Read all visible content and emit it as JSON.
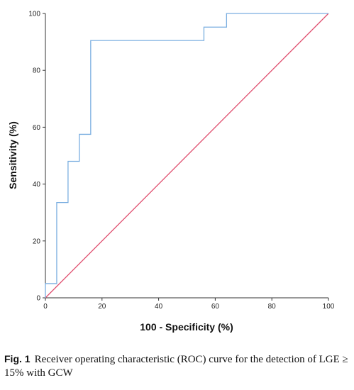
{
  "chart_data": {
    "type": "line",
    "xlabel": "100 - Specificity (%)",
    "ylabel": "Sensitivity (%)",
    "xlim": [
      0,
      100
    ],
    "ylim": [
      0,
      100
    ],
    "xticks": [
      "0",
      "20",
      "40",
      "60",
      "80",
      "100"
    ],
    "yticks": [
      "0",
      "20",
      "40",
      "60",
      "80",
      "100"
    ],
    "grid": false,
    "series": [
      {
        "color": "#7aaee0",
        "x": [
          0,
          0,
          4,
          4,
          8,
          8,
          12,
          12,
          16,
          16,
          56,
          56,
          64,
          64,
          100
        ],
        "y": [
          0,
          5,
          5,
          33.5,
          33.5,
          48,
          48,
          57.5,
          57.5,
          90.5,
          90.5,
          95.2,
          95.2,
          100,
          100
        ]
      },
      {
        "color": "#e05070",
        "x": [
          0,
          100
        ],
        "y": [
          0,
          100
        ]
      }
    ]
  },
  "caption": {
    "label": "Fig. 1",
    "text": "Receiver operating characteristic (ROC) curve for the detection of LGE ≥ 15% with GCW"
  }
}
